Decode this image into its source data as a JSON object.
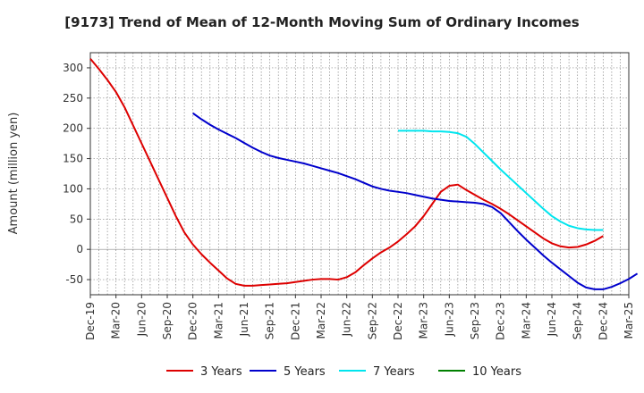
{
  "chart_data": {
    "type": "line",
    "title": "[9173]  Trend of Mean of 12-Month Moving Sum of Ordinary Incomes",
    "xlabel": "",
    "ylabel": "Amount (million yen)",
    "ylim": [
      -75,
      325
    ],
    "yticks": [
      -50,
      0,
      50,
      100,
      150,
      200,
      250,
      300
    ],
    "grid": true,
    "legend_position": "bottom",
    "x_ticks": [
      "Dec-19",
      "Mar-20",
      "Jun-20",
      "Sep-20",
      "Dec-20",
      "Mar-21",
      "Jun-21",
      "Sep-21",
      "Dec-21",
      "Mar-22",
      "Jun-22",
      "Sep-22",
      "Dec-22",
      "Mar-23",
      "Jun-23",
      "Sep-23",
      "Dec-23",
      "Mar-24",
      "Jun-24",
      "Sep-24",
      "Dec-24",
      "Mar-25"
    ],
    "series": [
      {
        "name": "3 Years",
        "color": "#dd0000",
        "start_index": 0,
        "values": [
          315,
          298,
          280,
          260,
          235,
          205,
          175,
          145,
          115,
          85,
          55,
          28,
          8,
          -8,
          -22,
          -35,
          -48,
          -57,
          -60,
          -60,
          -59,
          -58,
          -57,
          -56,
          -54,
          -52,
          -50,
          -49,
          -49,
          -50,
          -46,
          -38,
          -26,
          -15,
          -5,
          3,
          13,
          25,
          38,
          55,
          75,
          95,
          105,
          107,
          98,
          90,
          82,
          75,
          67,
          58,
          48,
          38,
          28,
          18,
          10,
          5,
          3,
          4,
          8,
          14,
          22
        ]
      },
      {
        "name": "5 Years",
        "color": "#0000cc",
        "start_index": 12,
        "values": [
          225,
          215,
          206,
          198,
          191,
          184,
          176,
          168,
          161,
          155,
          151,
          148,
          145,
          142,
          138,
          134,
          130,
          126,
          121,
          116,
          110,
          104,
          100,
          97,
          95,
          93,
          90,
          87,
          84,
          82,
          80,
          79,
          78,
          77,
          75,
          70,
          60,
          45,
          30,
          16,
          3,
          -10,
          -22,
          -33,
          -44,
          -55,
          -63,
          -66,
          -66,
          -62,
          -56,
          -49,
          -40
        ]
      },
      {
        "name": "7 Years",
        "color": "#00e5ee",
        "start_index": 36,
        "values": [
          196,
          196,
          196,
          196,
          195,
          195,
          194,
          192,
          186,
          174,
          160,
          146,
          132,
          119,
          106,
          93,
          80,
          67,
          55,
          46,
          39,
          35,
          33,
          32,
          32
        ]
      },
      {
        "name": "10 Years",
        "color": "#008000",
        "start_index": 0,
        "values": []
      }
    ]
  }
}
